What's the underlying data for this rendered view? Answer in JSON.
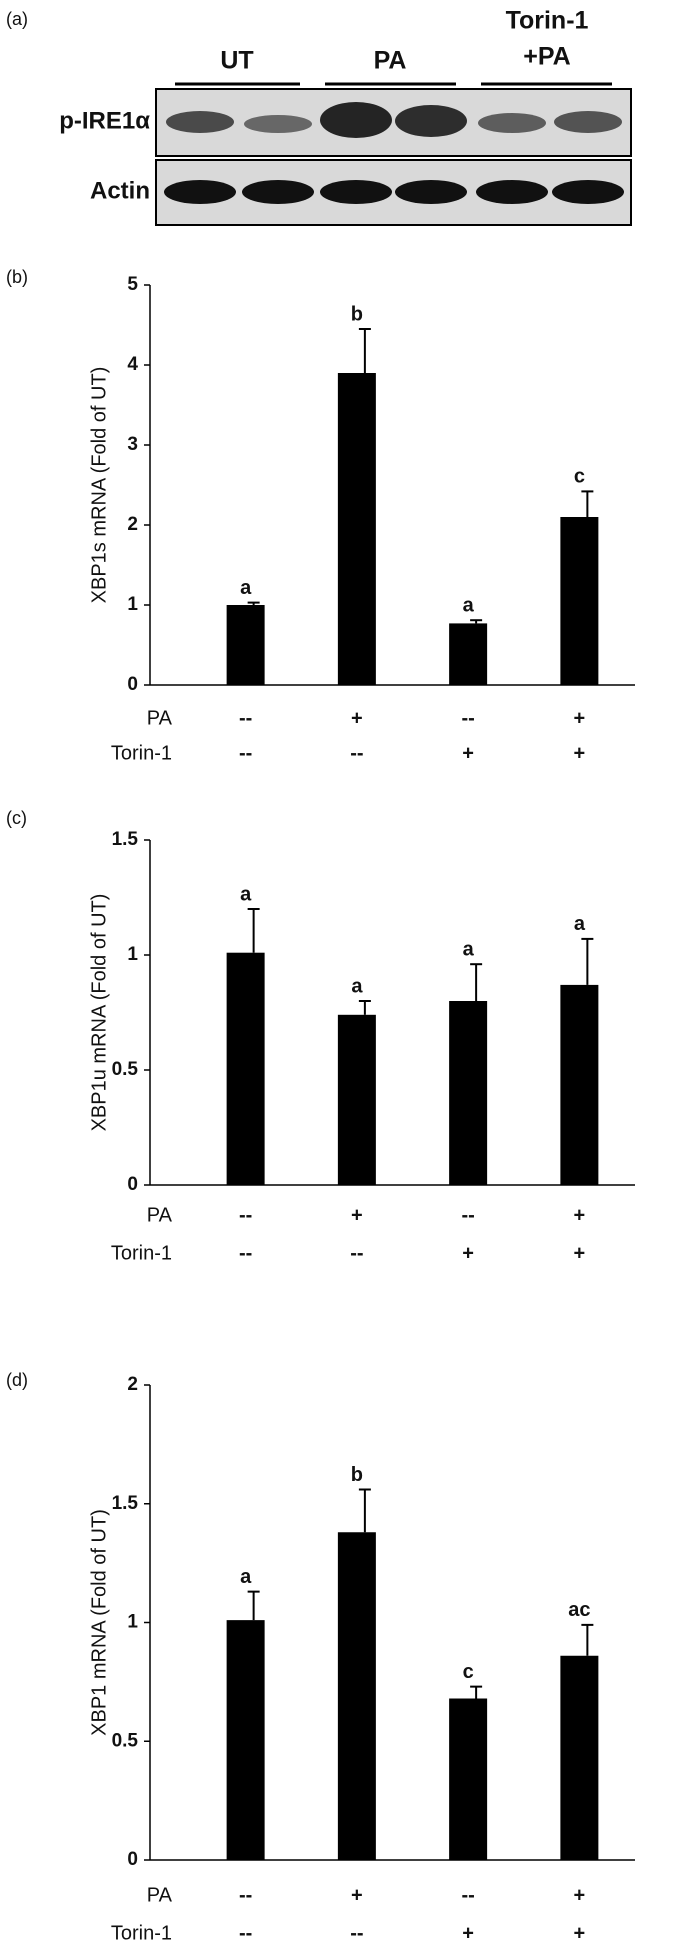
{
  "blot": {
    "panel": "(a)",
    "groups": [
      [
        "UT"
      ],
      [
        "PA"
      ],
      [
        "Torin-1",
        "+PA"
      ]
    ],
    "rows": [
      "p-IRE1α",
      "Actin"
    ]
  },
  "chart_data": [
    {
      "type": "bar",
      "panel": "(b)",
      "ylabel": "XBP1s mRNA (Fold of UT)",
      "color": "#000000",
      "ylim": [
        0,
        5
      ],
      "yticks": [
        0,
        1,
        2,
        3,
        4,
        5
      ],
      "values": [
        1.0,
        3.9,
        0.77,
        2.1
      ],
      "errors": [
        0.03,
        0.55,
        0.04,
        0.32
      ],
      "annotations": [
        "a",
        "b",
        "a",
        "c"
      ],
      "conditions": [
        {
          "name": "PA",
          "values": [
            "--",
            "+",
            "--",
            "+"
          ]
        },
        {
          "name": "Torin-1",
          "values": [
            "--",
            "--",
            "+",
            "+"
          ]
        }
      ]
    },
    {
      "type": "bar",
      "panel": "(c)",
      "ylabel": "XBP1u mRNA (Fold of UT)",
      "color": "#000000",
      "ylim": [
        0,
        1.5
      ],
      "yticks": [
        0,
        0.5,
        1,
        1.5
      ],
      "values": [
        1.01,
        0.74,
        0.8,
        0.87
      ],
      "errors": [
        0.19,
        0.06,
        0.16,
        0.2
      ],
      "annotations": [
        "a",
        "a",
        "a",
        "a"
      ],
      "conditions": [
        {
          "name": "PA",
          "values": [
            "--",
            "+",
            "--",
            "+"
          ]
        },
        {
          "name": "Torin-1",
          "values": [
            "--",
            "--",
            "+",
            "+"
          ]
        }
      ]
    },
    {
      "type": "bar",
      "panel": "(d)",
      "ylabel": "XBP1 mRNA (Fold of UT)",
      "color": "#000000",
      "ylim": [
        0,
        2
      ],
      "yticks": [
        0,
        0.5,
        1,
        1.5,
        2
      ],
      "values": [
        1.01,
        1.38,
        0.68,
        0.86
      ],
      "errors": [
        0.12,
        0.18,
        0.05,
        0.13
      ],
      "annotations": [
        "a",
        "b",
        "c",
        "ac"
      ],
      "conditions": [
        {
          "name": "PA",
          "values": [
            "--",
            "+",
            "--",
            "+"
          ]
        },
        {
          "name": "Torin-1",
          "values": [
            "--",
            "--",
            "+",
            "+"
          ]
        }
      ]
    }
  ]
}
